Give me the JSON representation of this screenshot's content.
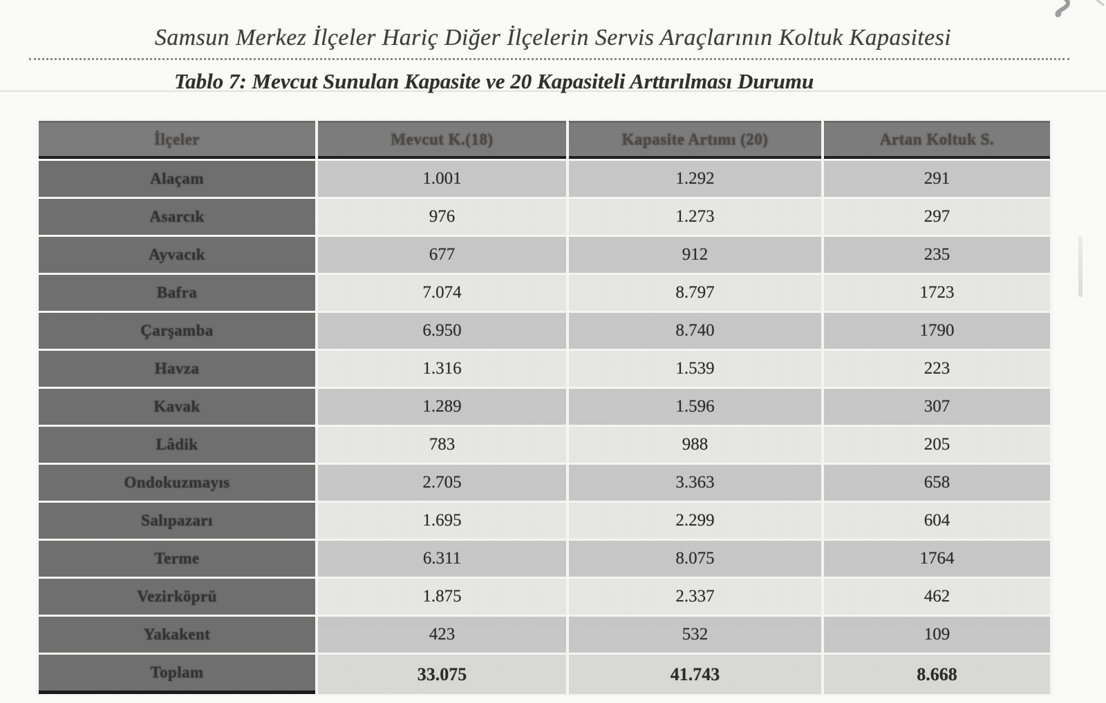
{
  "page": {
    "title": "Samsun Merkez İlçeler Hariç Diğer İlçelerin Servis Araçlarının Koltuk Kapasitesi",
    "subtitle": "Tablo 7: Mevcut Sunulan Kapasite ve 20 Kapasiteli Arttırılması Durumu"
  },
  "table": {
    "columns": [
      "İlçeler",
      "Mevcut K.(18)",
      "Kapasite Artımı (20)",
      "Artan Koltuk S."
    ],
    "rows": [
      [
        "Alaçam",
        "1.001",
        "1.292",
        "291"
      ],
      [
        "Asarcık",
        "976",
        "1.273",
        "297"
      ],
      [
        "Ayvacık",
        "677",
        "912",
        "235"
      ],
      [
        "Bafra",
        "7.074",
        "8.797",
        "1723"
      ],
      [
        "Çarşamba",
        "6.950",
        "8.740",
        "1790"
      ],
      [
        "Havza",
        "1.316",
        "1.539",
        "223"
      ],
      [
        "Kavak",
        "1.289",
        "1.596",
        "307"
      ],
      [
        "Lâdik",
        "783",
        "988",
        "205"
      ],
      [
        "Ondokuzmayıs",
        "2.705",
        "3.363",
        "658"
      ],
      [
        "Salıpazarı",
        "1.695",
        "2.299",
        "604"
      ],
      [
        "Terme",
        "6.311",
        "8.075",
        "1764"
      ],
      [
        "Vezirköprü",
        "1.875",
        "2.337",
        "462"
      ],
      [
        "Yakakent",
        "423",
        "532",
        "109"
      ],
      [
        "Toplam",
        "33.075",
        "41.743",
        "8.668"
      ]
    ],
    "total_row_label": "Toplam"
  },
  "marks": {
    "pen_mark": "handwritten-pen-squiggle"
  },
  "colors": {
    "header_bg": "#7c7c7c",
    "row_header_bg": "#6f6f6f",
    "row_shade_dark": "#c7c7c7",
    "row_shade_light": "#e7e7e4",
    "total_row_bg": "#d9d9d6",
    "ink": "#2a2a2a"
  }
}
